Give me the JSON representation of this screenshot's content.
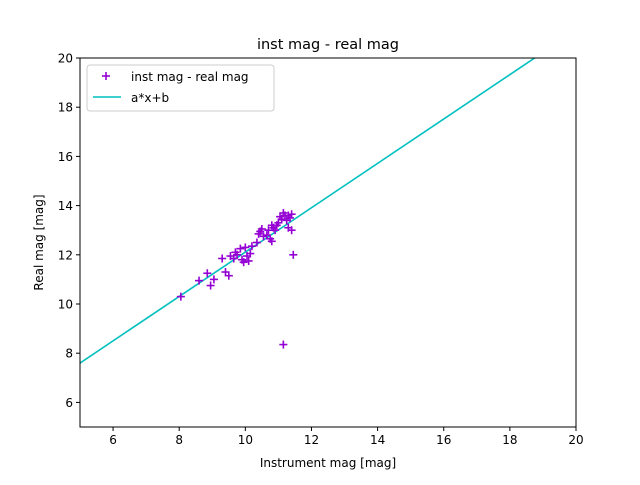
{
  "chart_data": {
    "type": "scatter",
    "title": "inst mag - real mag",
    "xlabel": "Instrument mag [mag]",
    "ylabel": "Real mag [mag]",
    "xlim": [
      5,
      20
    ],
    "ylim": [
      5,
      20
    ],
    "xticks": [
      6,
      8,
      10,
      12,
      14,
      16,
      18,
      20
    ],
    "yticks": [
      6,
      8,
      10,
      12,
      14,
      16,
      18,
      20
    ],
    "grid": false,
    "legend_position": "top-left",
    "series": [
      {
        "name": "inst mag - real mag",
        "kind": "scatter",
        "marker": "plus",
        "color": "#9400D3",
        "points": [
          [
            8.05,
            10.3
          ],
          [
            8.6,
            10.95
          ],
          [
            8.85,
            11.25
          ],
          [
            8.95,
            10.75
          ],
          [
            9.05,
            11.0
          ],
          [
            9.3,
            11.85
          ],
          [
            9.4,
            11.3
          ],
          [
            9.5,
            11.15
          ],
          [
            9.55,
            11.95
          ],
          [
            9.65,
            11.85
          ],
          [
            9.7,
            12.1
          ],
          [
            9.75,
            12.0
          ],
          [
            9.85,
            12.25
          ],
          [
            9.9,
            11.8
          ],
          [
            9.95,
            11.7
          ],
          [
            10.0,
            12.3
          ],
          [
            10.05,
            11.95
          ],
          [
            10.1,
            11.75
          ],
          [
            10.15,
            12.05
          ],
          [
            10.2,
            12.35
          ],
          [
            10.35,
            12.5
          ],
          [
            10.4,
            12.85
          ],
          [
            10.45,
            12.95
          ],
          [
            10.5,
            13.05
          ],
          [
            10.55,
            12.75
          ],
          [
            10.65,
            12.8
          ],
          [
            10.7,
            13.0
          ],
          [
            10.75,
            12.65
          ],
          [
            10.8,
            13.2
          ],
          [
            10.8,
            12.55
          ],
          [
            10.85,
            13.1
          ],
          [
            10.9,
            13.0
          ],
          [
            10.95,
            13.2
          ],
          [
            11.0,
            13.3
          ],
          [
            11.05,
            13.55
          ],
          [
            11.1,
            13.45
          ],
          [
            11.15,
            13.7
          ],
          [
            11.2,
            13.6
          ],
          [
            11.25,
            13.4
          ],
          [
            11.3,
            13.6
          ],
          [
            11.3,
            13.1
          ],
          [
            11.35,
            13.5
          ],
          [
            11.4,
            13.65
          ],
          [
            11.4,
            13.0
          ],
          [
            11.45,
            12.0
          ],
          [
            11.15,
            8.35
          ]
        ]
      },
      {
        "name": "a*x+b",
        "kind": "line",
        "color": "#00BFBF",
        "points": [
          [
            5,
            7.6
          ],
          [
            18.75,
            20.0
          ]
        ]
      }
    ]
  }
}
